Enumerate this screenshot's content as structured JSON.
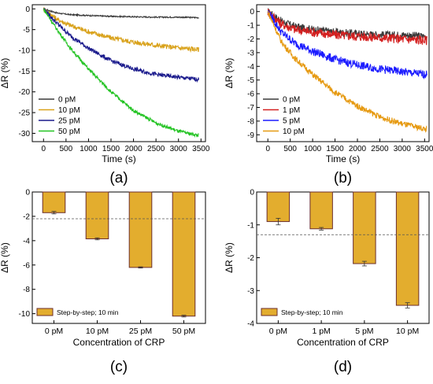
{
  "chart_data": [
    {
      "type": "line",
      "panel_label": "(a)",
      "xlabel": "Time (s)",
      "ylabel": "ΔR (%)",
      "xlim": [
        -250,
        3600
      ],
      "ylim": [
        -32,
        1
      ],
      "xticks": [
        "0",
        "500",
        "1000",
        "1500",
        "2000",
        "2500",
        "3000",
        "3500"
      ],
      "yticks": [
        "0",
        "-5",
        "-10",
        "-15",
        "-20",
        "-25",
        "-30"
      ],
      "legend_position": "bottom-left",
      "series": [
        {
          "name": "0 pM",
          "color": "#3a3a3a",
          "x": [
            0,
            300,
            600,
            1000,
            1500,
            2000,
            2500,
            3000,
            3450
          ],
          "values": [
            0,
            -1.0,
            -1.4,
            -1.6,
            -1.8,
            -1.9,
            -2.0,
            -2.0,
            -2.1
          ]
        },
        {
          "name": "10 pM",
          "color": "#d9a21b",
          "x": [
            0,
            300,
            600,
            1000,
            1500,
            2000,
            2500,
            3000,
            3450
          ],
          "values": [
            0,
            -2.5,
            -4.0,
            -5.5,
            -7.0,
            -8.0,
            -8.8,
            -9.4,
            -9.8
          ]
        },
        {
          "name": "25 pM",
          "color": "#1a1a8c",
          "x": [
            0,
            300,
            600,
            1000,
            1500,
            2000,
            2500,
            3000,
            3450
          ],
          "values": [
            0,
            -3.5,
            -6.5,
            -9.5,
            -12.5,
            -14.5,
            -15.8,
            -16.5,
            -17.0
          ]
        },
        {
          "name": "50 pM",
          "color": "#22c322",
          "x": [
            0,
            300,
            600,
            1000,
            1500,
            2000,
            2500,
            3000,
            3450
          ],
          "values": [
            0,
            -5.0,
            -9.5,
            -14.5,
            -20.0,
            -24.5,
            -27.5,
            -29.5,
            -30.5
          ]
        }
      ]
    },
    {
      "type": "line",
      "panel_label": "(b)",
      "xlabel": "Time (s)",
      "ylabel": "ΔR (%)",
      "xlim": [
        -250,
        3600
      ],
      "ylim": [
        -9.5,
        0.5
      ],
      "xticks": [
        "0",
        "500",
        "1000",
        "1500",
        "2000",
        "2500",
        "3000",
        "3500"
      ],
      "yticks": [
        "0",
        "-1",
        "-2",
        "-3",
        "-4",
        "-5",
        "-6",
        "-7",
        "-8",
        "-9"
      ],
      "legend_position": "bottom-left",
      "series": [
        {
          "name": "0 pM",
          "color": "#3a3a3a",
          "x": [
            0,
            300,
            600,
            1000,
            1500,
            2000,
            2500,
            3000,
            3550
          ],
          "values": [
            0,
            -0.7,
            -1.1,
            -1.3,
            -1.5,
            -1.6,
            -1.7,
            -1.7,
            -1.8
          ]
        },
        {
          "name": "1 pM",
          "color": "#d42020",
          "x": [
            0,
            300,
            600,
            1000,
            1500,
            2000,
            2500,
            3000,
            3550
          ],
          "values": [
            0,
            -0.9,
            -1.3,
            -1.5,
            -1.7,
            -1.8,
            -1.9,
            -2.0,
            -2.1
          ]
        },
        {
          "name": "5 pM",
          "color": "#1c1cff",
          "x": [
            0,
            300,
            600,
            1000,
            1500,
            2000,
            2500,
            3000,
            3550
          ],
          "values": [
            0,
            -1.5,
            -2.3,
            -2.9,
            -3.5,
            -3.9,
            -4.2,
            -4.4,
            -4.6
          ]
        },
        {
          "name": "10 pM",
          "color": "#e69a12",
          "x": [
            0,
            300,
            600,
            1000,
            1500,
            2000,
            2500,
            3000,
            3550
          ],
          "values": [
            0,
            -2.2,
            -3.4,
            -4.6,
            -5.9,
            -6.9,
            -7.7,
            -8.2,
            -8.6
          ]
        }
      ]
    },
    {
      "type": "bar",
      "panel_label": "(c)",
      "xlabel": "Concentration of CRP",
      "ylabel": "ΔR (%)",
      "ylim": [
        -10.8,
        0
      ],
      "yticks": [
        "0",
        "-2",
        "-4",
        "-6",
        "-8",
        "-10"
      ],
      "categories": [
        "0 pM",
        "10 pM",
        "25 pM",
        "50 pM"
      ],
      "values": [
        -1.7,
        -3.85,
        -6.2,
        -10.2
      ],
      "errors": [
        0.1,
        0.08,
        0.05,
        0.07
      ],
      "reference_line": -2.2,
      "bar_color": "#e3ad2e",
      "legend": "Step-by-step; 10 min",
      "legend_position": "bottom-left"
    },
    {
      "type": "bar",
      "panel_label": "(d)",
      "xlabel": "Concentration of CRP",
      "ylabel": "ΔR (%)",
      "ylim": [
        -4,
        0
      ],
      "yticks": [
        "0",
        "-1",
        "-2",
        "-3",
        "-4"
      ],
      "categories": [
        "0 pM",
        "1 pM",
        "5 pM",
        "10 pM"
      ],
      "values": [
        -0.9,
        -1.12,
        -2.18,
        -3.45
      ],
      "errors": [
        0.1,
        0.04,
        0.07,
        0.08
      ],
      "reference_line": -1.3,
      "bar_color": "#e3ad2e",
      "legend": "Step-by-step; 10 min",
      "legend_position": "bottom-left"
    }
  ]
}
